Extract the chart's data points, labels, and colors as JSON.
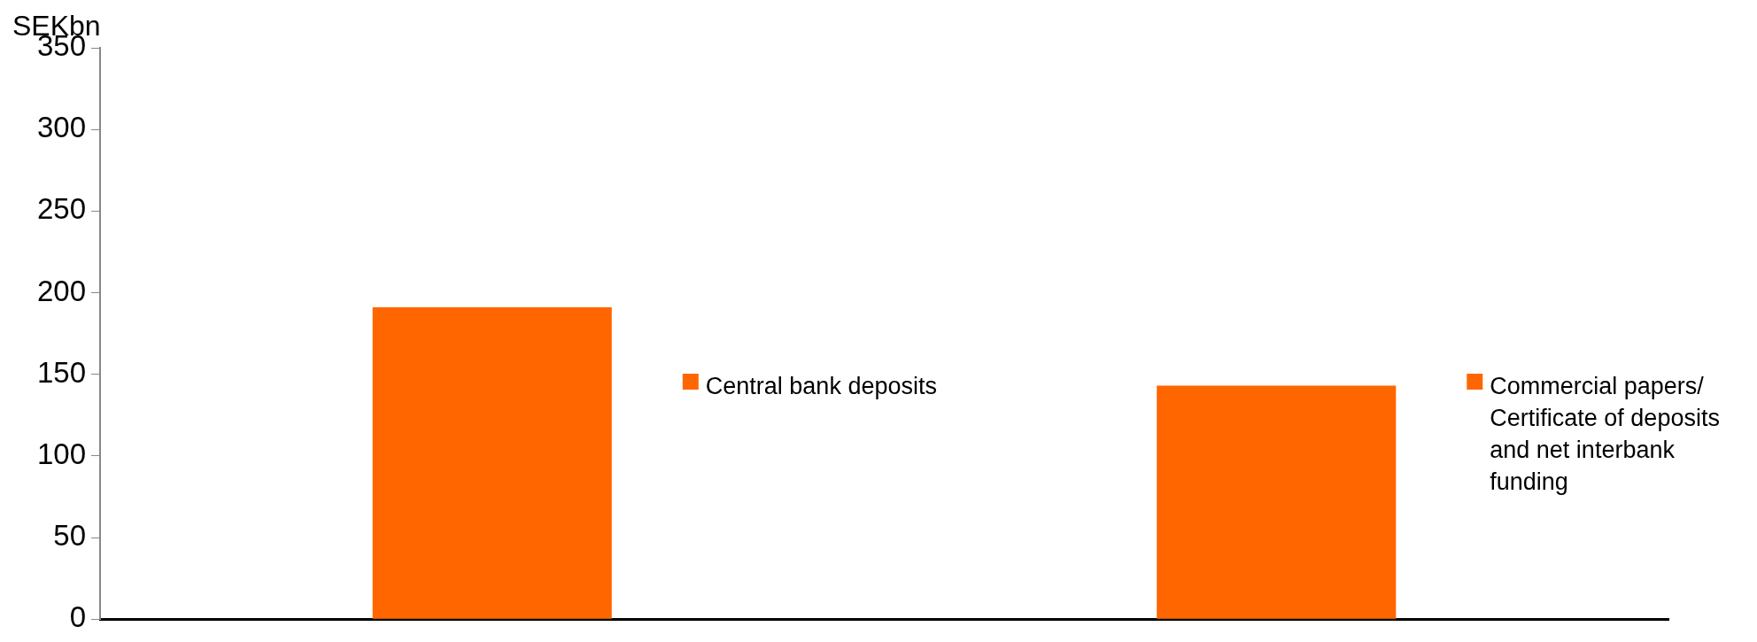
{
  "chart_data": {
    "type": "bar",
    "ylabel": "SEKbn",
    "categories": [
      null,
      null
    ],
    "series": [
      {
        "name": "Central bank deposits",
        "color": "#ff6600",
        "values": [
          191,
          null
        ]
      },
      {
        "name": "Commercial papers/ Certificate of deposits and net interbank funding",
        "color": "#ff6600",
        "values": [
          null,
          143
        ]
      }
    ],
    "ylim": [
      0,
      350
    ],
    "yticks": [
      0,
      50,
      100,
      150,
      200,
      250,
      300,
      350
    ],
    "grid": false,
    "legend": "right"
  }
}
